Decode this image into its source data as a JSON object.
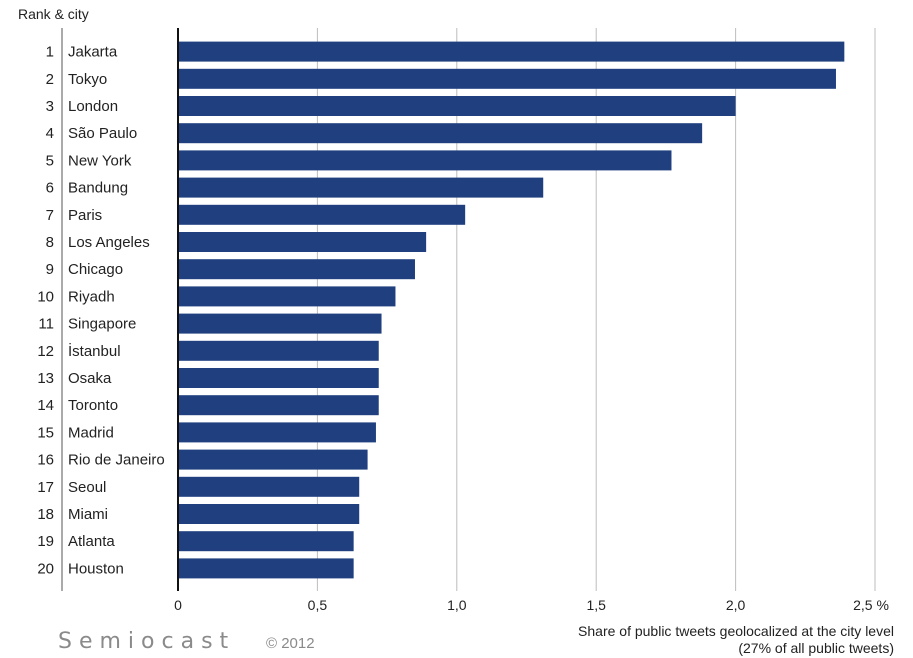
{
  "chart_data": {
    "type": "bar",
    "orientation": "horizontal",
    "header": "Rank & city",
    "ranks": [
      "1",
      "2",
      "3",
      "4",
      "5",
      "6",
      "7",
      "8",
      "9",
      "10",
      "11",
      "12",
      "13",
      "14",
      "15",
      "16",
      "17",
      "18",
      "19",
      "20"
    ],
    "categories": [
      "Jakarta",
      "Tokyo",
      "London",
      "São Paulo",
      "New York",
      "Bandung",
      "Paris",
      "Los Angeles",
      "Chicago",
      "Riyadh",
      "Singapore",
      "İstanbul",
      "Osaka",
      "Toronto",
      "Madrid",
      "Rio de Janeiro",
      "Seoul",
      "Miami",
      "Atlanta",
      "Houston"
    ],
    "values": [
      2.39,
      2.36,
      2.0,
      1.88,
      1.77,
      1.31,
      1.03,
      0.89,
      0.85,
      0.78,
      0.73,
      0.72,
      0.72,
      0.72,
      0.71,
      0.68,
      0.65,
      0.65,
      0.63,
      0.63
    ],
    "xlim": [
      0,
      2.5
    ],
    "x_ticks": [
      0,
      0.5,
      1.0,
      1.5,
      2.0,
      2.5
    ],
    "x_tick_labels": [
      "0",
      "0,5",
      "1,0",
      "1,5",
      "2,0",
      "2,5 %"
    ],
    "xlabel_lines": [
      "Share of public tweets geolocalized at the city level",
      "(27% of all public tweets)"
    ],
    "grid": "vertical",
    "bar_color": "#1f3f7e"
  },
  "footer": {
    "brand": "Semiocast",
    "copyright": "© 2012"
  }
}
